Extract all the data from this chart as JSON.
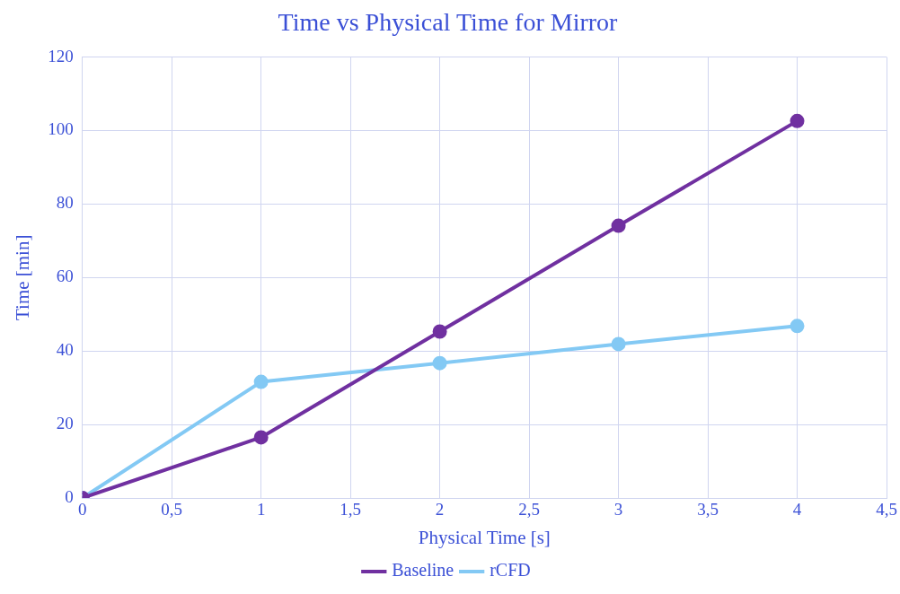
{
  "chart_data": {
    "type": "line",
    "title": "Time vs Physical Time for Mirror",
    "xlabel": "Physical Time [s]",
    "ylabel": "Time [min]",
    "x": [
      0,
      1,
      2,
      3,
      4
    ],
    "series": [
      {
        "name": "Baseline",
        "color": "#7030a0",
        "values": [
          0,
          16.5,
          45.3,
          74.1,
          102.6
        ]
      },
      {
        "name": "rCFD",
        "color": "#83c9f4",
        "values": [
          0,
          31.6,
          36.7,
          41.9,
          46.8
        ]
      }
    ],
    "xlim": [
      0,
      4.5
    ],
    "xticks": [
      0,
      {
        "value": 0.5,
        "label": "0,5"
      },
      1,
      {
        "value": 1.5,
        "label": "1,5"
      },
      2,
      {
        "value": 2.5,
        "label": "2,5"
      },
      3,
      {
        "value": 3.5,
        "label": "3,5"
      },
      4,
      {
        "value": 4.5,
        "label": "4,5"
      }
    ],
    "ylim": [
      0,
      120
    ],
    "yticks": [
      0,
      20,
      40,
      60,
      80,
      100,
      120
    ],
    "grid": true,
    "legend": "bottom",
    "marker": "circle",
    "line_style": "solid"
  }
}
